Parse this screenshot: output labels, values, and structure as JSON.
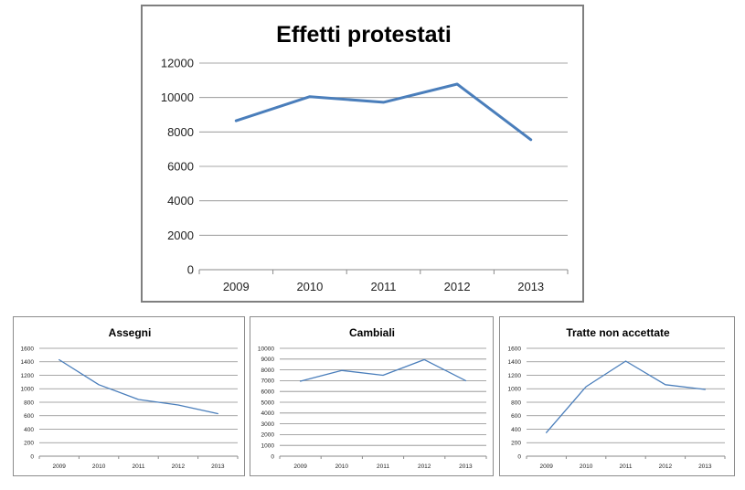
{
  "chart_data": [
    {
      "type": "line",
      "title": "Effetti protestati",
      "categories": [
        "2009",
        "2010",
        "2011",
        "2012",
        "2013"
      ],
      "series": [
        {
          "values": [
            8650,
            10050,
            9720,
            10780,
            7550
          ]
        }
      ],
      "ylim": [
        0,
        12000
      ],
      "yticks": [
        "0",
        "2000",
        "4000",
        "6000",
        "8000",
        "10000",
        "12000"
      ],
      "grid": true,
      "color": "#4a7ebb"
    },
    {
      "type": "line",
      "title": "Assegni",
      "categories": [
        "2009",
        "2010",
        "2011",
        "2012",
        "2013"
      ],
      "series": [
        {
          "values": [
            1430,
            1060,
            840,
            760,
            630
          ]
        }
      ],
      "ylim": [
        0,
        1600
      ],
      "yticks": [
        "0",
        "200",
        "400",
        "600",
        "800",
        "1000",
        "1200",
        "1400",
        "1600"
      ],
      "grid": true,
      "color": "#4a7ebb"
    },
    {
      "type": "line",
      "title": "Cambiali",
      "categories": [
        "2009",
        "2010",
        "2011",
        "2012",
        "2013"
      ],
      "series": [
        {
          "values": [
            6950,
            7950,
            7500,
            8950,
            7000
          ]
        }
      ],
      "ylim": [
        0,
        10000
      ],
      "yticks": [
        "0",
        "1000",
        "2000",
        "3000",
        "4000",
        "5000",
        "6000",
        "7000",
        "8000",
        "9000",
        "10000"
      ],
      "grid": true,
      "color": "#4a7ebb"
    },
    {
      "type": "line",
      "title": "Tratte non accettate",
      "categories": [
        "2009",
        "2010",
        "2011",
        "2012",
        "2013"
      ],
      "series": [
        {
          "values": [
            350,
            1030,
            1410,
            1060,
            990
          ]
        }
      ],
      "ylim": [
        0,
        1600
      ],
      "yticks": [
        "0",
        "200",
        "400",
        "600",
        "800",
        "1000",
        "1200",
        "1400",
        "1600"
      ],
      "grid": true,
      "color": "#4a7ebb"
    }
  ]
}
